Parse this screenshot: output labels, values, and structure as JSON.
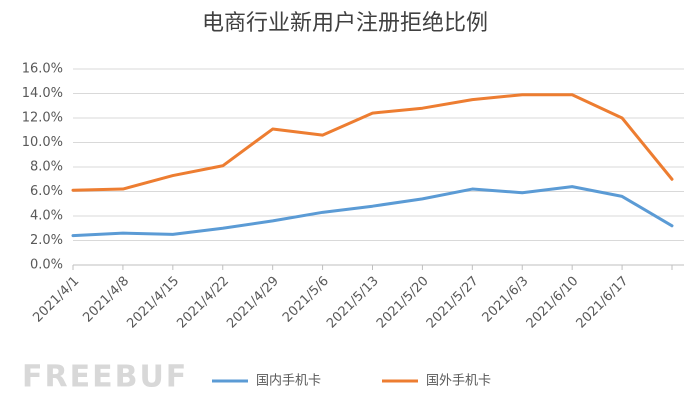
{
  "chart_data": {
    "type": "line",
    "title": "电商行业新用户注册拒绝比例",
    "categories": [
      "2021/4/1",
      "2021/4/8",
      "2021/4/15",
      "2021/4/22",
      "2021/4/29",
      "2021/5/6",
      "2021/5/13",
      "2021/5/20",
      "2021/5/27",
      "2021/6/3",
      "2021/6/10",
      "2021/6/17",
      null
    ],
    "series": [
      {
        "name": "国内手机卡",
        "color": "#5b9bd5",
        "values": [
          2.4,
          2.6,
          2.5,
          3.0,
          3.6,
          4.3,
          4.8,
          5.4,
          6.2,
          5.9,
          6.4,
          5.6,
          3.2
        ]
      },
      {
        "name": "国外手机卡",
        "color": "#ed7d31",
        "values": [
          6.1,
          6.2,
          7.3,
          8.1,
          11.1,
          10.6,
          12.4,
          12.8,
          13.5,
          13.9,
          13.9,
          12.0,
          7.0
        ]
      }
    ],
    "ylim": [
      0,
      16
    ],
    "yticks": [
      {
        "value": 0,
        "label": "0.0%"
      },
      {
        "value": 2,
        "label": "2.0%"
      },
      {
        "value": 4,
        "label": "4.0%"
      },
      {
        "value": 6,
        "label": "6.0%"
      },
      {
        "value": 8,
        "label": "8.0%"
      },
      {
        "value": 10,
        "label": "10.0%"
      },
      {
        "value": 12,
        "label": "12.0%"
      },
      {
        "value": 14,
        "label": "14.0%"
      },
      {
        "value": 16,
        "label": "16.0%"
      }
    ],
    "grid": true,
    "legend": "bottom",
    "watermark": "FREEBUF"
  }
}
